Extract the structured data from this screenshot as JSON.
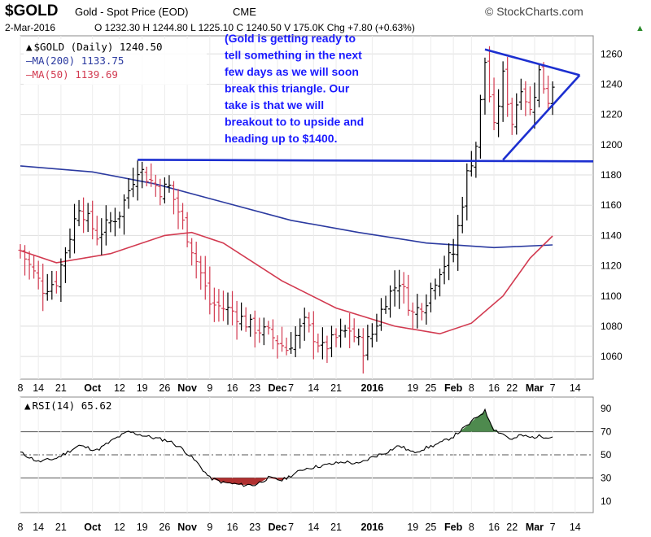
{
  "header": {
    "symbol": "$GOLD",
    "name": "Gold - Spot Price (EOD)",
    "exchange": "CME",
    "brand": "© StockCharts.com",
    "date": "2-Mar-2016",
    "ohlc": "O 1232.30  H 1244.80  L 1225.10  C 1240.50  V 175.0K  Chg +7.80 (+0.63%)"
  },
  "legend": {
    "price": "$GOLD (Daily) 1240.50",
    "ma200": "MA(200) 1133.75",
    "ma50": "MA(50) 1139.69",
    "rsi": "RSI(14) 65.62"
  },
  "annotation": [
    "(Gold is getting ready to",
    "tell something in the next",
    "few days as we will soon",
    "break this triangle. Our",
    "take is that we will",
    "breakout to to upside and",
    "heading up to $1400."
  ],
  "x_labels": [
    {
      "t": "8",
      "d": 0,
      "bold": false
    },
    {
      "t": "14",
      "d": 4,
      "bold": false
    },
    {
      "t": "21",
      "d": 9,
      "bold": false
    },
    {
      "t": "Oct",
      "d": 16,
      "bold": true
    },
    {
      "t": "12",
      "d": 22,
      "bold": false
    },
    {
      "t": "19",
      "d": 27,
      "bold": false
    },
    {
      "t": "26",
      "d": 32,
      "bold": false
    },
    {
      "t": "Nov",
      "d": 37,
      "bold": true
    },
    {
      "t": "9",
      "d": 42,
      "bold": false
    },
    {
      "t": "16",
      "d": 47,
      "bold": false
    },
    {
      "t": "23",
      "d": 52,
      "bold": false
    },
    {
      "t": "Dec",
      "d": 57,
      "bold": true
    },
    {
      "t": "7",
      "d": 60,
      "bold": false
    },
    {
      "t": "14",
      "d": 65,
      "bold": false
    },
    {
      "t": "21",
      "d": 70,
      "bold": false
    },
    {
      "t": "2016",
      "d": 78,
      "bold": true
    },
    {
      "t": "19",
      "d": 87,
      "bold": false
    },
    {
      "t": "25",
      "d": 91,
      "bold": false
    },
    {
      "t": "Feb",
      "d": 96,
      "bold": true
    },
    {
      "t": "8",
      "d": 100,
      "bold": false
    },
    {
      "t": "16",
      "d": 105,
      "bold": false
    },
    {
      "t": "22",
      "d": 109,
      "bold": false
    },
    {
      "t": "Mar",
      "d": 114,
      "bold": true
    },
    {
      "t": "7",
      "d": 118,
      "bold": false
    },
    {
      "t": "14",
      "d": 123,
      "bold": false
    }
  ],
  "colors": {
    "up": "#000000",
    "down": "#d23a50",
    "ma200": "#2b3aa0",
    "ma50": "#d23a50",
    "annotation": "#1a1aff",
    "rsi_over": "#4e8a4e",
    "rsi_under": "#b03030"
  },
  "chart_data": [
    {
      "type": "ohlc",
      "series_name": "$GOLD (Daily)",
      "ylim": [
        1045,
        1272
      ],
      "y_ticks": [
        1060,
        1080,
        1100,
        1120,
        1140,
        1160,
        1180,
        1200,
        1220,
        1240,
        1260
      ],
      "x_range_days": [
        0,
        127
      ],
      "price_path": [
        [
          0,
          1130
        ],
        [
          5,
          1105
        ],
        [
          8,
          1110
        ],
        [
          13,
          1160
        ],
        [
          17,
          1140
        ],
        [
          22,
          1155
        ],
        [
          26,
          1185
        ],
        [
          31,
          1170
        ],
        [
          33,
          1172
        ],
        [
          37,
          1140
        ],
        [
          40,
          1115
        ],
        [
          42,
          1095
        ],
        [
          47,
          1090
        ],
        [
          51,
          1080
        ],
        [
          55,
          1075
        ],
        [
          59,
          1065
        ],
        [
          63,
          1082
        ],
        [
          67,
          1065
        ],
        [
          70,
          1072
        ],
        [
          73,
          1078
        ],
        [
          76,
          1065
        ],
        [
          78,
          1075
        ],
        [
          81,
          1098
        ],
        [
          84,
          1110
        ],
        [
          87,
          1088
        ],
        [
          90,
          1098
        ],
        [
          93,
          1118
        ],
        [
          96,
          1128
        ],
        [
          99,
          1180
        ],
        [
          101,
          1200
        ],
        [
          103,
          1255
        ],
        [
          105,
          1210
        ],
        [
          107,
          1245
        ],
        [
          109,
          1215
        ],
        [
          111,
          1240
        ],
        [
          113,
          1222
        ],
        [
          115,
          1248
        ],
        [
          117,
          1230
        ],
        [
          118,
          1240.5
        ]
      ],
      "ma200": [
        [
          0,
          1186
        ],
        [
          16,
          1182
        ],
        [
          30,
          1174
        ],
        [
          45,
          1162
        ],
        [
          60,
          1150
        ],
        [
          75,
          1142
        ],
        [
          90,
          1135
        ],
        [
          105,
          1132
        ],
        [
          118,
          1133.75
        ]
      ],
      "ma50": [
        [
          0,
          1130
        ],
        [
          8,
          1122
        ],
        [
          20,
          1128
        ],
        [
          32,
          1140
        ],
        [
          38,
          1142
        ],
        [
          45,
          1135
        ],
        [
          58,
          1110
        ],
        [
          70,
          1092
        ],
        [
          83,
          1080
        ],
        [
          93,
          1075
        ],
        [
          100,
          1082
        ],
        [
          107,
          1100
        ],
        [
          113,
          1125
        ],
        [
          118,
          1139.69
        ]
      ],
      "trendlines": [
        {
          "from": [
            26,
            1190
          ],
          "to": [
            127,
            1189
          ]
        },
        {
          "from": [
            103,
            1263
          ],
          "to": [
            124,
            1246
          ]
        },
        {
          "from": [
            107,
            1190
          ],
          "to": [
            124,
            1246
          ]
        }
      ],
      "last_close": 1240.5
    },
    {
      "type": "line",
      "series_name": "RSI(14)",
      "ylim": [
        0,
        100
      ],
      "y_ticks": [
        10,
        30,
        50,
        70,
        90
      ],
      "ref_lines": [
        30,
        50,
        70
      ],
      "rsi_path": [
        [
          0,
          52
        ],
        [
          4,
          44
        ],
        [
          8,
          47
        ],
        [
          13,
          58
        ],
        [
          17,
          54
        ],
        [
          21,
          64
        ],
        [
          24,
          70
        ],
        [
          28,
          66
        ],
        [
          33,
          62
        ],
        [
          36,
          55
        ],
        [
          39,
          44
        ],
        [
          42,
          30
        ],
        [
          45,
          26
        ],
        [
          49,
          24
        ],
        [
          52,
          24
        ],
        [
          55,
          30
        ],
        [
          58,
          28
        ],
        [
          61,
          34
        ],
        [
          63,
          38
        ],
        [
          66,
          40
        ],
        [
          69,
          42
        ],
        [
          72,
          44
        ],
        [
          75,
          42
        ],
        [
          78,
          48
        ],
        [
          81,
          52
        ],
        [
          84,
          58
        ],
        [
          87,
          52
        ],
        [
          90,
          56
        ],
        [
          93,
          60
        ],
        [
          96,
          66
        ],
        [
          99,
          75
        ],
        [
          101,
          82
        ],
        [
          103,
          88
        ],
        [
          105,
          72
        ],
        [
          107,
          68
        ],
        [
          109,
          63
        ],
        [
          111,
          67
        ],
        [
          113,
          65
        ],
        [
          115,
          66
        ],
        [
          118,
          65.62
        ]
      ]
    }
  ]
}
